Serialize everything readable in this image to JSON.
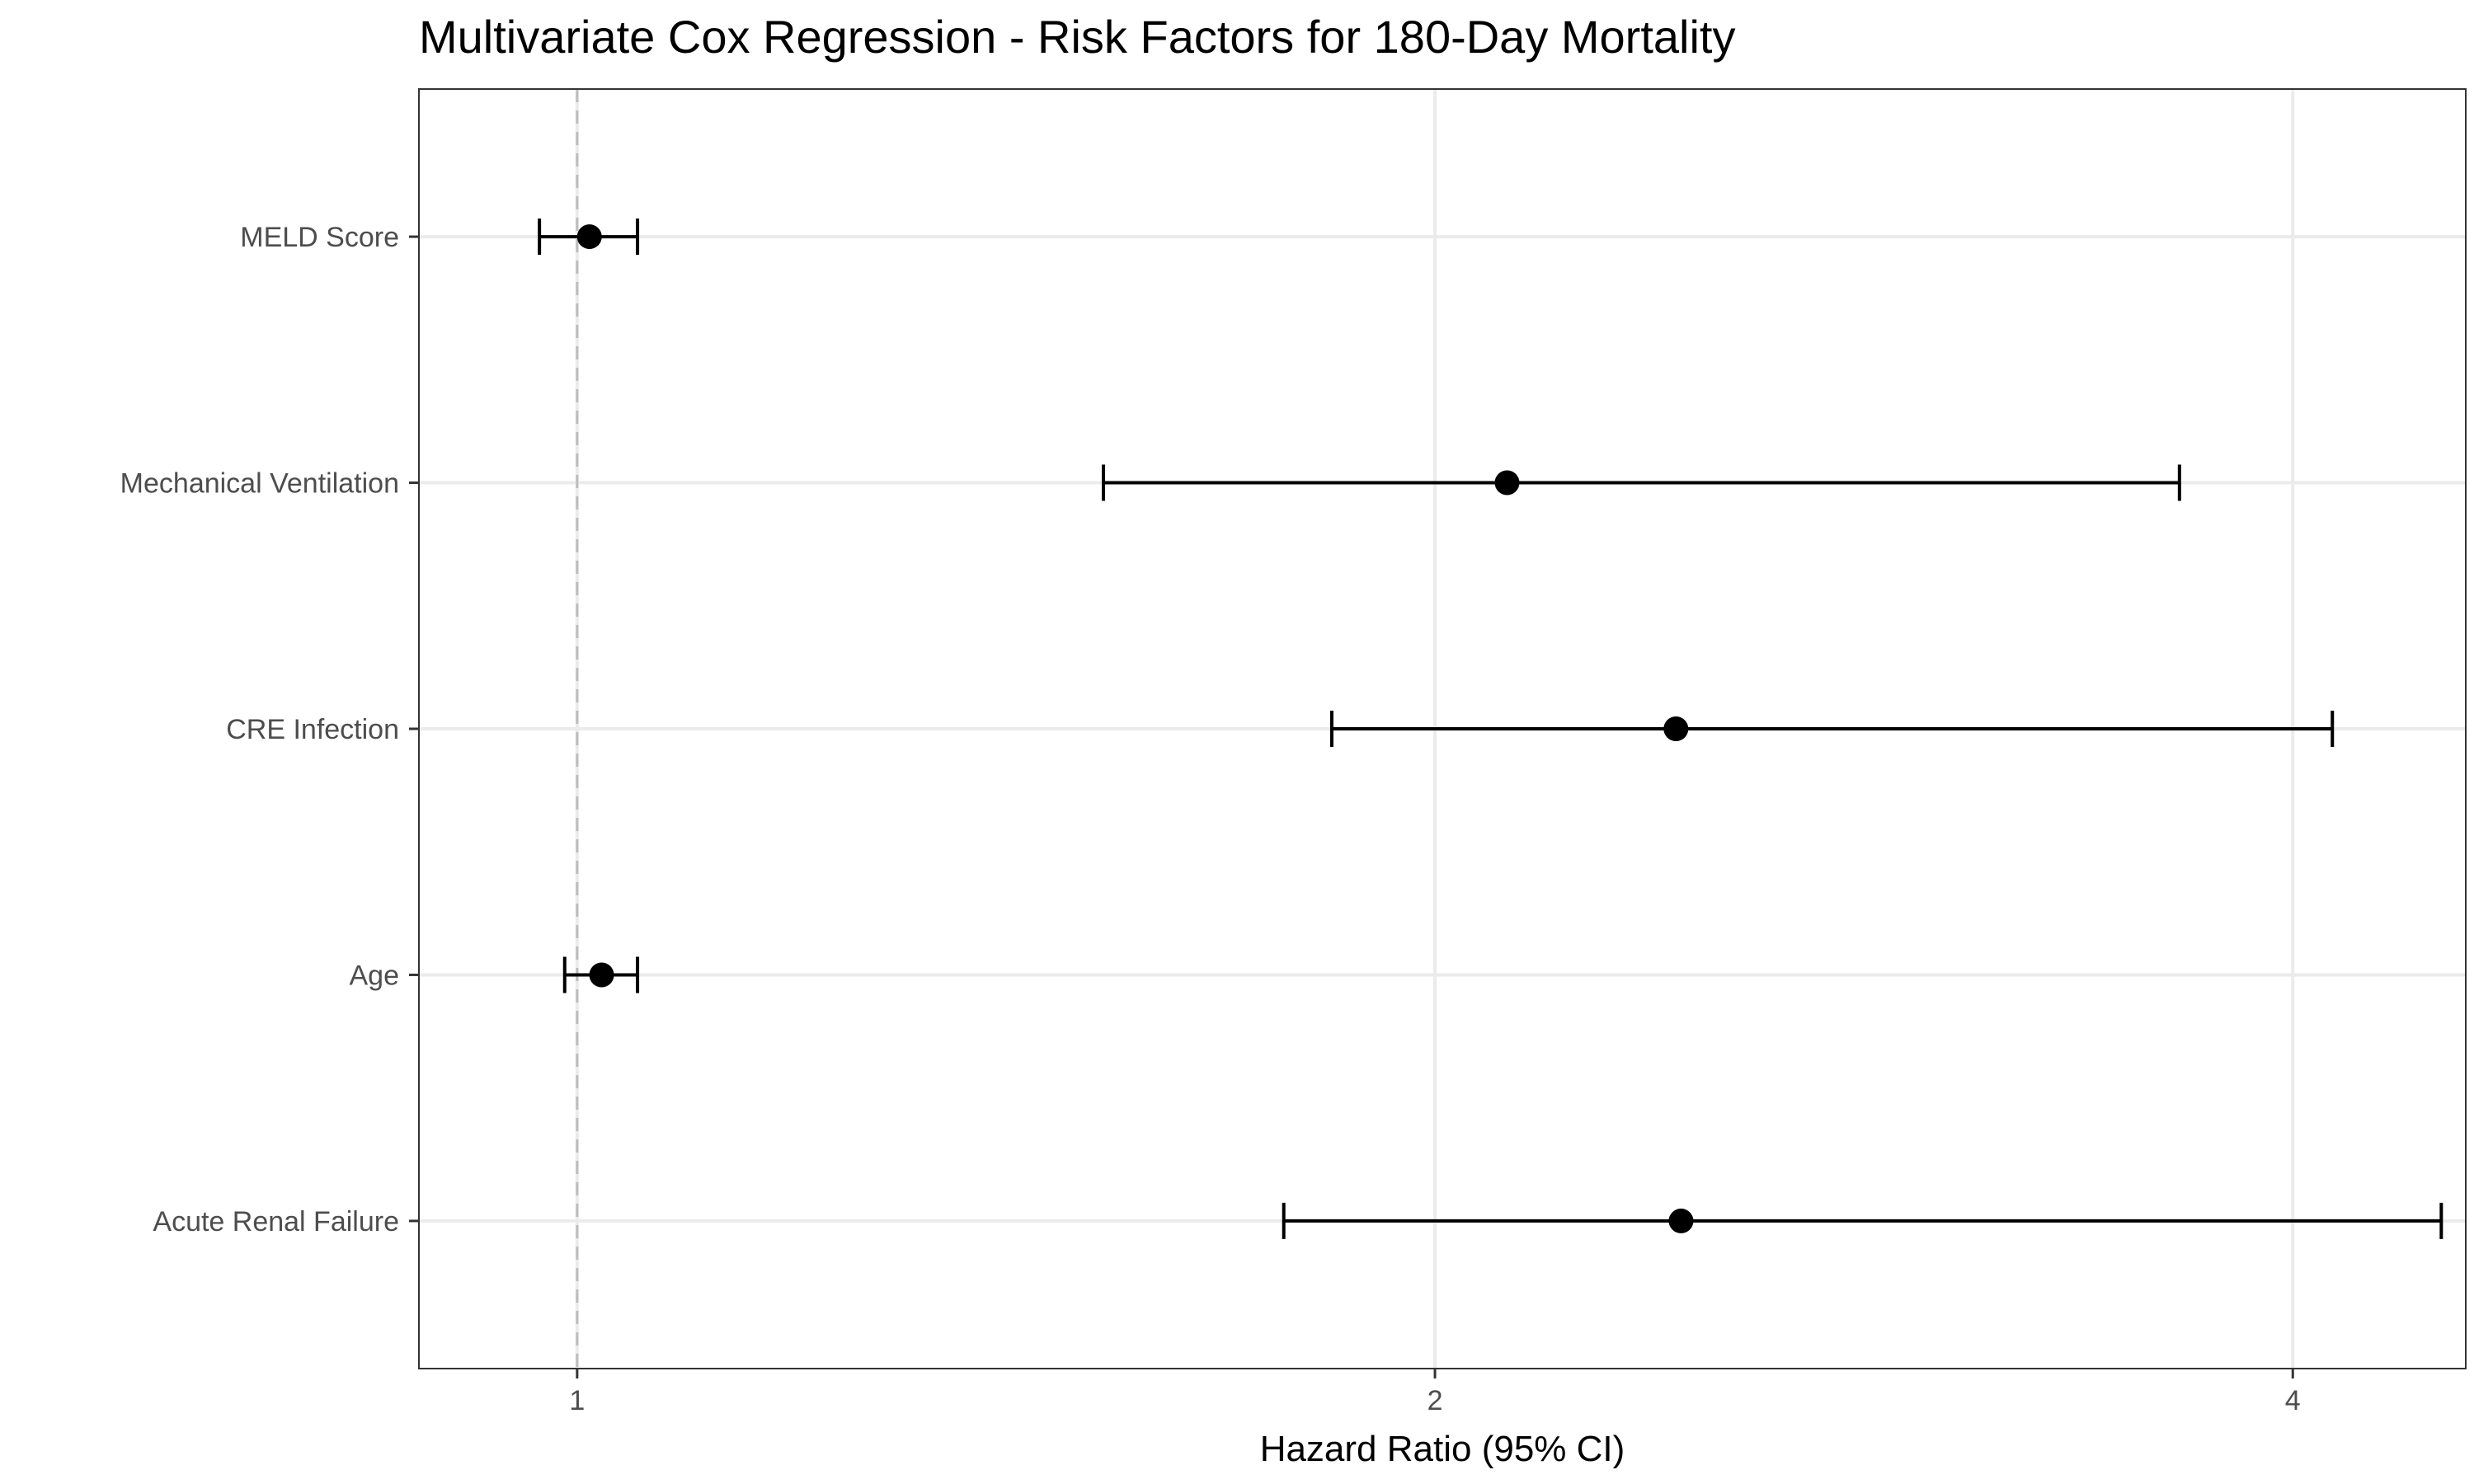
{
  "chart_data": {
    "type": "forest",
    "title": "Multivariate Cox Regression - Risk Factors for 180-Day Mortality",
    "xlabel": "Hazard Ratio (95% CI)",
    "ylabel": "",
    "x_scale": "log2",
    "xlim": [
      0.88,
      4.6
    ],
    "x_ticks": [
      1,
      2,
      4
    ],
    "x_tick_labels": [
      "1",
      "2",
      "4"
    ],
    "reference_line": 1,
    "grid": true,
    "categories": [
      "MELD Score",
      "Mechanical Ventilation",
      "CRE Infection",
      "Age",
      "Acute Renal Failure"
    ],
    "series": [
      {
        "hr": [
          1.01,
          2.12,
          2.43,
          1.02,
          2.44
        ],
        "lower": [
          0.97,
          1.53,
          1.84,
          0.99,
          1.77
        ],
        "upper": [
          1.05,
          3.65,
          4.13,
          1.05,
          4.51
        ]
      }
    ],
    "colors": {
      "point": "#000000",
      "grid": "#ebebeb",
      "reference": "#bdbdbd",
      "panel_border": "#333333",
      "tick_label": "#4d4d4d"
    }
  }
}
